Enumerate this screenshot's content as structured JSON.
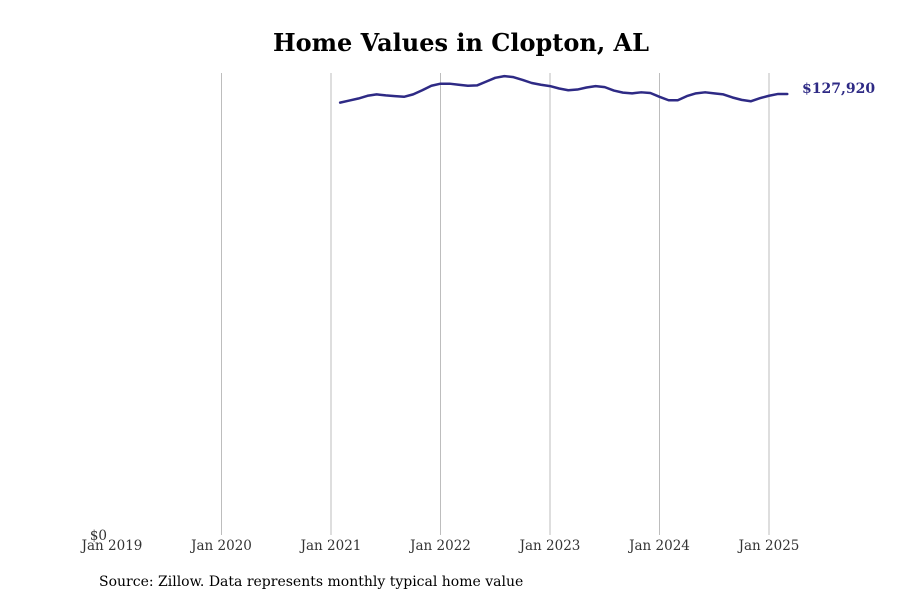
{
  "chart_data": {
    "type": "line",
    "title": "Home Values in Clopton, AL",
    "xlabel": "",
    "ylabel": "",
    "x_ticks": [
      "Jan 2019",
      "Jan 2020",
      "Jan 2021",
      "Jan 2022",
      "Jan 2023",
      "Jan 2024",
      "Jan 2025"
    ],
    "y_ticks": [
      "$0"
    ],
    "xlim": [
      "2019-01",
      "2025-12"
    ],
    "ylim": [
      0,
      134000
    ],
    "grid": "vertical",
    "line_color": "#2e2a85",
    "end_label": "$127,920",
    "series": [
      {
        "x": [
          "2021-02",
          "2021-03",
          "2021-04",
          "2021-05",
          "2021-06",
          "2021-07",
          "2021-08",
          "2021-09",
          "2021-10",
          "2021-11",
          "2021-12",
          "2022-01",
          "2022-02",
          "2022-03",
          "2022-04",
          "2022-05",
          "2022-06",
          "2022-07",
          "2022-08",
          "2022-09",
          "2022-10",
          "2022-11",
          "2022-12",
          "2023-01",
          "2023-02",
          "2023-03",
          "2023-04",
          "2023-05",
          "2023-06",
          "2023-07",
          "2023-08",
          "2023-09",
          "2023-10",
          "2023-11",
          "2023-12",
          "2024-01",
          "2024-02",
          "2024-03",
          "2024-04",
          "2024-05",
          "2024-06",
          "2024-07",
          "2024-08",
          "2024-09",
          "2024-10",
          "2024-11",
          "2024-12",
          "2025-01",
          "2025-02",
          "2025-03"
        ],
        "y": [
          125400,
          126000,
          126600,
          127400,
          127800,
          127500,
          127300,
          127100,
          127800,
          129000,
          130300,
          130900,
          130900,
          130600,
          130300,
          130400,
          131500,
          132600,
          133100,
          132800,
          132000,
          131100,
          130600,
          130200,
          129500,
          129000,
          129200,
          129800,
          130200,
          129900,
          128900,
          128300,
          128100,
          128400,
          128200,
          127100,
          126100,
          126100,
          127300,
          128100,
          128400,
          128100,
          127800,
          126900,
          126200,
          125800,
          126700,
          127400,
          127920,
          127920
        ]
      }
    ]
  },
  "footer": {
    "source": "Source: Zillow. Data represents monthly typical home value"
  }
}
